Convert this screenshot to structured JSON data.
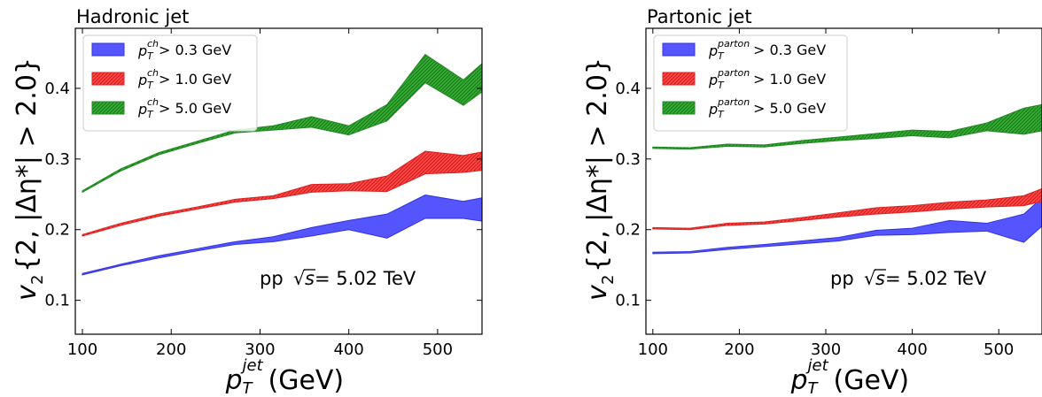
{
  "chart_data": [
    {
      "type": "area",
      "title": "Hadronic jet",
      "xlabel_main": "p",
      "xlabel_sup": "jet",
      "xlabel_sub": "T",
      "xlabel_unit": " (GeV)",
      "ylabel": "v",
      "ylabel_sub": "2",
      "ylabel_rest": "{2, |Δη*| > 2.0}",
      "annotation_pre": "pp ",
      "annotation_sqrt": "√",
      "annotation_s": "s",
      "annotation_post": " = 5.02 TeV",
      "xlim": [
        92,
        550
      ],
      "ylim": [
        0.052,
        0.485
      ],
      "xticks": [
        100,
        200,
        300,
        400,
        500
      ],
      "yticks": [
        0.1,
        0.2,
        0.3,
        0.4
      ],
      "ytick_labels": [
        "0.1",
        "0.2",
        "0.3",
        "0.4"
      ],
      "legend_position": "top-left",
      "x": [
        100,
        143,
        186,
        229,
        272,
        315,
        358,
        400,
        443,
        486,
        529,
        550
      ],
      "series": [
        {
          "name_base": "p",
          "name_sup": "ch",
          "name_sub": "T",
          "name_rest": " > 0.3 GeV",
          "color": "#5555ff",
          "edge": "#3333dd",
          "hatch": false,
          "upper": [
            0.138,
            0.151,
            0.163,
            0.173,
            0.183,
            0.19,
            0.203,
            0.213,
            0.222,
            0.249,
            0.24,
            0.245
          ],
          "lower": [
            0.136,
            0.149,
            0.16,
            0.17,
            0.179,
            0.183,
            0.191,
            0.2,
            0.188,
            0.216,
            0.216,
            0.212
          ]
        },
        {
          "name_base": "p",
          "name_sup": "ch",
          "name_sub": "T",
          "name_rest": " > 1.0 GeV",
          "color": "#ff4444",
          "edge": "#dd2222",
          "hatch": true,
          "upper": [
            0.193,
            0.209,
            0.222,
            0.232,
            0.243,
            0.248,
            0.264,
            0.265,
            0.276,
            0.311,
            0.305,
            0.31
          ],
          "lower": [
            0.191,
            0.206,
            0.219,
            0.229,
            0.239,
            0.244,
            0.253,
            0.255,
            0.254,
            0.279,
            0.281,
            0.284
          ]
        },
        {
          "name_base": "p",
          "name_sup": "ch",
          "name_sub": "T",
          "name_rest": " > 5.0 GeV",
          "color": "#33aa33",
          "edge": "#228822",
          "hatch": true,
          "upper": [
            0.255,
            0.286,
            0.309,
            0.325,
            0.341,
            0.347,
            0.36,
            0.347,
            0.377,
            0.448,
            0.412,
            0.435
          ],
          "lower": [
            0.253,
            0.283,
            0.306,
            0.322,
            0.337,
            0.341,
            0.345,
            0.334,
            0.354,
            0.408,
            0.376,
            0.395
          ]
        }
      ]
    },
    {
      "type": "area",
      "title": "Partonic jet",
      "xlabel_main": "p",
      "xlabel_sup": "jet",
      "xlabel_sub": "T",
      "xlabel_unit": " (GeV)",
      "ylabel": "v",
      "ylabel_sub": "2",
      "ylabel_rest": "{2, |Δη*| > 2.0}",
      "annotation_pre": "pp ",
      "annotation_sqrt": "√",
      "annotation_s": "s",
      "annotation_post": " = 5.02 TeV",
      "xlim": [
        92,
        550
      ],
      "ylim": [
        0.052,
        0.485
      ],
      "xticks": [
        100,
        200,
        300,
        400,
        500
      ],
      "yticks": [
        0.1,
        0.2,
        0.3,
        0.4
      ],
      "ytick_labels": [
        "0.1",
        "0.2",
        "0.3",
        "0.4"
      ],
      "legend_position": "top-left",
      "x": [
        100,
        143,
        186,
        229,
        272,
        315,
        358,
        400,
        443,
        486,
        529,
        550
      ],
      "series": [
        {
          "name_base": "p",
          "name_sup": "parton",
          "name_sub": "T",
          "name_rest": " > 0.3 GeV",
          "color": "#5555ff",
          "edge": "#3333dd",
          "hatch": false,
          "upper": [
            0.168,
            0.169,
            0.175,
            0.179,
            0.184,
            0.189,
            0.199,
            0.202,
            0.213,
            0.209,
            0.222,
            0.245
          ],
          "lower": [
            0.166,
            0.167,
            0.172,
            0.176,
            0.18,
            0.184,
            0.192,
            0.193,
            0.196,
            0.198,
            0.182,
            0.205
          ]
        },
        {
          "name_base": "p",
          "name_sup": "parton",
          "name_sub": "T",
          "name_rest": " > 1.0 GeV",
          "color": "#ff4444",
          "edge": "#dd2222",
          "hatch": true,
          "upper": [
            0.203,
            0.202,
            0.209,
            0.211,
            0.217,
            0.224,
            0.231,
            0.234,
            0.239,
            0.242,
            0.248,
            0.258
          ],
          "lower": [
            0.201,
            0.2,
            0.206,
            0.208,
            0.213,
            0.218,
            0.222,
            0.225,
            0.229,
            0.232,
            0.234,
            0.24
          ]
        },
        {
          "name_base": "p",
          "name_sup": "parton",
          "name_sub": "T",
          "name_rest": " > 5.0 GeV",
          "color": "#33aa33",
          "edge": "#228822",
          "hatch": true,
          "upper": [
            0.317,
            0.316,
            0.321,
            0.32,
            0.326,
            0.331,
            0.336,
            0.341,
            0.339,
            0.351,
            0.372,
            0.377
          ],
          "lower": [
            0.315,
            0.314,
            0.318,
            0.317,
            0.322,
            0.326,
            0.329,
            0.333,
            0.33,
            0.34,
            0.335,
            0.34
          ]
        }
      ]
    }
  ]
}
